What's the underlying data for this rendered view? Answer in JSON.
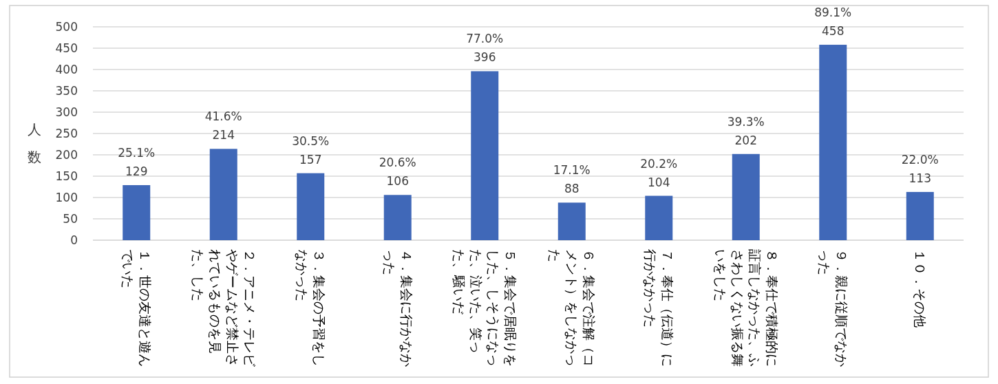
{
  "chart_data": {
    "type": "bar",
    "ylabel": "人数",
    "categories": [
      "１．世の友達と遊んでいた",
      "２．アニメ・テレビやゲームなど禁止されているものを見た、した",
      "３．集会の予習をしなかった",
      "４．集会に行かなかった",
      "５．集会で居眠りをした、しそうになった、泣いた、笑った、騒いだ",
      "６．集会で注解（コメント）をしなかった",
      "７．奉仕（伝道）に行かなかった",
      "８．奉仕で積極的に証言しなかった、ふさわしくない振る舞いをした",
      "９．親に従順でなかった",
      "１０．その他"
    ],
    "values": [
      129,
      214,
      157,
      106,
      396,
      88,
      104,
      202,
      458,
      113
    ],
    "value_labels": [
      "25.1%\n129",
      "41.6%\n214",
      "30.5%\n157",
      "20.6%\n106",
      "77.0%\n396",
      "17.1%\n88",
      "20.2%\n104",
      "39.3%\n202",
      "89.1%\n458",
      "22.0%\n113"
    ],
    "color": "#4068b8",
    "ylim": [
      0,
      500
    ],
    "yticks": [
      0,
      50,
      100,
      150,
      200,
      250,
      300,
      350,
      400,
      450,
      500
    ],
    "grid": "y"
  }
}
